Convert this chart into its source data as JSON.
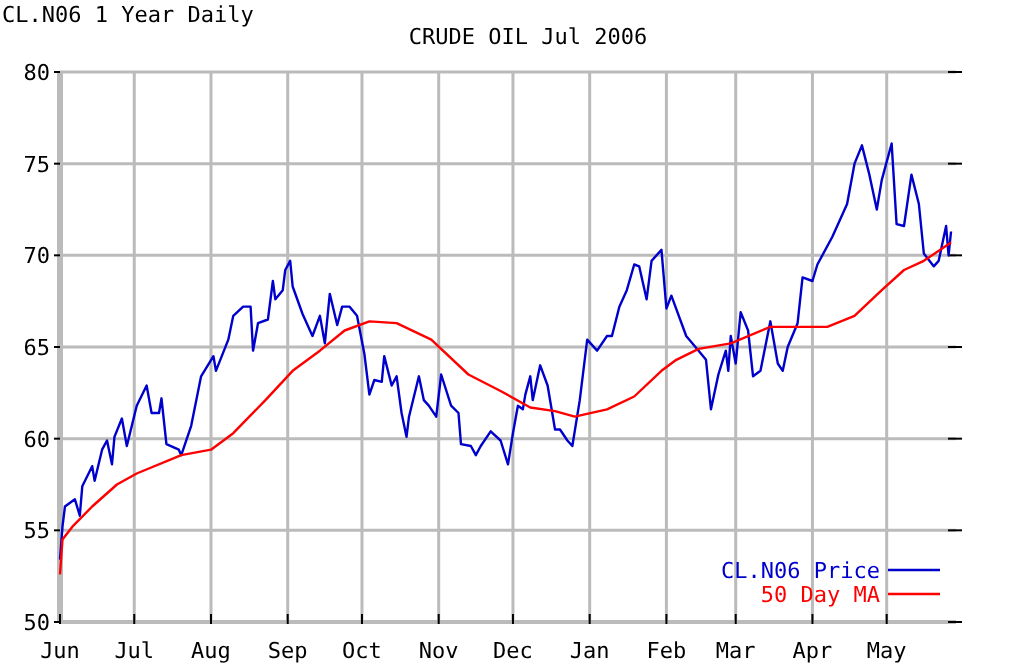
{
  "chart_data": {
    "type": "line",
    "title": "CRUDE OIL Jul 2006",
    "subtitle": "CL.N06 1 Year Daily",
    "xlim": [
      "2005-06-01",
      "2006-05-29"
    ],
    "xticks": [
      {
        "value": "2005-06-01",
        "label": "Jun"
      },
      {
        "value": "2005-07-01",
        "label": "Jul"
      },
      {
        "value": "2005-08-01",
        "label": "Aug"
      },
      {
        "value": "2005-09-01",
        "label": "Sep"
      },
      {
        "value": "2005-10-01",
        "label": "Oct"
      },
      {
        "value": "2005-11-01",
        "label": "Nov"
      },
      {
        "value": "2005-12-01",
        "label": "Dec"
      },
      {
        "value": "2006-01-01",
        "label": "Jan"
      },
      {
        "value": "2006-02-01",
        "label": "Feb"
      },
      {
        "value": "2006-03-01",
        "label": "Mar"
      },
      {
        "value": "2006-04-01",
        "label": "Apr"
      },
      {
        "value": "2006-05-01",
        "label": "May"
      }
    ],
    "ylim": [
      50,
      80
    ],
    "yticks": [
      50,
      55,
      60,
      65,
      70,
      75,
      80
    ],
    "grid": true,
    "legend": "bottom right",
    "marker": "none",
    "line_style": "solid",
    "series": [
      {
        "name": "CL.N06 Price",
        "color": "#0000cc",
        "x": [
          "2005-06-01",
          "2005-06-02",
          "2005-06-03",
          "2005-06-07",
          "2005-06-09",
          "2005-06-10",
          "2005-06-14",
          "2005-06-15",
          "2005-06-18",
          "2005-06-20",
          "2005-06-22",
          "2005-06-23",
          "2005-06-26",
          "2005-06-28",
          "2005-07-02",
          "2005-07-06",
          "2005-07-08",
          "2005-07-11",
          "2005-07-12",
          "2005-07-14",
          "2005-07-19",
          "2005-07-20",
          "2005-07-24",
          "2005-07-28",
          "2005-08-02",
          "2005-08-03",
          "2005-08-08",
          "2005-08-10",
          "2005-08-14",
          "2005-08-17",
          "2005-08-18",
          "2005-08-20",
          "2005-08-24",
          "2005-08-26",
          "2005-08-27",
          "2005-08-30",
          "2005-08-31",
          "2005-09-02",
          "2005-09-03",
          "2005-09-07",
          "2005-09-11",
          "2005-09-14",
          "2005-09-16",
          "2005-09-18",
          "2005-09-21",
          "2005-09-23",
          "2005-09-26",
          "2005-09-29",
          "2005-10-02",
          "2005-10-04",
          "2005-10-06",
          "2005-10-09",
          "2005-10-10",
          "2005-10-13",
          "2005-10-15",
          "2005-10-17",
          "2005-10-19",
          "2005-10-20",
          "2005-10-24",
          "2005-10-26",
          "2005-10-28",
          "2005-10-31",
          "2005-11-02",
          "2005-11-06",
          "2005-11-09",
          "2005-11-10",
          "2005-11-14",
          "2005-11-16",
          "2005-11-18",
          "2005-11-22",
          "2005-11-26",
          "2005-11-29",
          "2005-12-01",
          "2005-12-03",
          "2005-12-05",
          "2005-12-06",
          "2005-12-08",
          "2005-12-09",
          "2005-12-12",
          "2005-12-15",
          "2005-12-18",
          "2005-12-20",
          "2005-12-23",
          "2005-12-25",
          "2005-12-28",
          "2005-12-31",
          "2006-01-04",
          "2006-01-08",
          "2006-01-10",
          "2006-01-13",
          "2006-01-16",
          "2006-01-19",
          "2006-01-21",
          "2006-01-24",
          "2006-01-26",
          "2006-01-30",
          "2006-02-01",
          "2006-02-03",
          "2006-02-09",
          "2006-02-14",
          "2006-02-17",
          "2006-02-19",
          "2006-02-22",
          "2006-02-25",
          "2006-02-26",
          "2006-02-27",
          "2006-03-01",
          "2006-03-03",
          "2006-03-06",
          "2006-03-08",
          "2006-03-11",
          "2006-03-15",
          "2006-03-18",
          "2006-03-20",
          "2006-03-22",
          "2006-03-26",
          "2006-03-28",
          "2006-04-01",
          "2006-04-03",
          "2006-04-09",
          "2006-04-15",
          "2006-04-18",
          "2006-04-21",
          "2006-04-24",
          "2006-04-27",
          "2006-04-29",
          "2006-05-03",
          "2006-05-05",
          "2006-05-08",
          "2006-05-11",
          "2006-05-14",
          "2006-05-16",
          "2006-05-20",
          "2006-05-22",
          "2006-05-25",
          "2006-05-26",
          "2006-05-27"
        ],
        "values": [
          53.4,
          55.2,
          56.3,
          56.7,
          55.8,
          57.4,
          58.5,
          57.7,
          59.4,
          59.9,
          58.6,
          60.1,
          61.1,
          59.6,
          61.8,
          62.9,
          61.4,
          61.4,
          62.2,
          59.7,
          59.4,
          59.1,
          60.7,
          63.4,
          64.5,
          63.7,
          65.4,
          66.7,
          67.2,
          67.2,
          64.8,
          66.3,
          66.5,
          68.6,
          67.6,
          68.1,
          69.2,
          69.7,
          68.3,
          66.8,
          65.6,
          66.7,
          65.2,
          67.9,
          66.2,
          67.2,
          67.2,
          66.7,
          64.6,
          62.4,
          63.2,
          63.1,
          64.5,
          62.9,
          63.4,
          61.4,
          60.1,
          61.2,
          63.4,
          62.1,
          61.8,
          61.2,
          63.5,
          61.8,
          61.4,
          59.7,
          59.6,
          59.1,
          59.6,
          60.4,
          59.9,
          58.6,
          60.3,
          61.8,
          61.6,
          62.4,
          63.4,
          62.1,
          64.0,
          62.9,
          60.5,
          60.5,
          59.9,
          59.6,
          62.1,
          65.4,
          64.8,
          65.6,
          65.6,
          67.2,
          68.1,
          69.5,
          69.4,
          67.6,
          69.7,
          70.3,
          67.1,
          67.8,
          65.6,
          64.8,
          64.3,
          61.6,
          63.5,
          64.8,
          63.7,
          65.6,
          64.1,
          66.9,
          65.9,
          63.4,
          63.7,
          66.4,
          64.1,
          63.7,
          65.0,
          66.3,
          68.8,
          68.6,
          69.5,
          71.0,
          72.8,
          75.0,
          76.0,
          74.4,
          72.5,
          74.1,
          76.1,
          71.7,
          71.6,
          74.4,
          72.8,
          70.1,
          69.4,
          69.7,
          71.6,
          70.0,
          71.3
        ]
      },
      {
        "name": "50 Day MA",
        "color": "#ff0000",
        "x": [
          "2005-06-01",
          "2005-06-02",
          "2005-06-06",
          "2005-06-14",
          "2005-06-24",
          "2005-07-02",
          "2005-07-20",
          "2005-08-01",
          "2005-08-10",
          "2005-08-23",
          "2005-09-03",
          "2005-09-14",
          "2005-09-24",
          "2005-10-04",
          "2005-10-15",
          "2005-10-29",
          "2005-11-13",
          "2005-11-26",
          "2005-12-08",
          "2005-12-18",
          "2005-12-26",
          "2006-01-08",
          "2006-01-19",
          "2006-01-30",
          "2006-02-05",
          "2006-02-14",
          "2006-02-27",
          "2006-03-15",
          "2006-04-07",
          "2006-04-18",
          "2006-04-29",
          "2006-05-08",
          "2006-05-16",
          "2006-05-27"
        ],
        "values": [
          52.6,
          54.5,
          55.2,
          56.3,
          57.5,
          58.1,
          59.1,
          59.4,
          60.3,
          62.1,
          63.7,
          64.8,
          65.9,
          66.4,
          66.3,
          65.4,
          63.5,
          62.6,
          61.7,
          61.5,
          61.2,
          61.6,
          62.3,
          63.7,
          64.3,
          64.9,
          65.2,
          66.1,
          66.1,
          66.7,
          68.1,
          69.2,
          69.7,
          70.7
        ]
      }
    ]
  }
}
